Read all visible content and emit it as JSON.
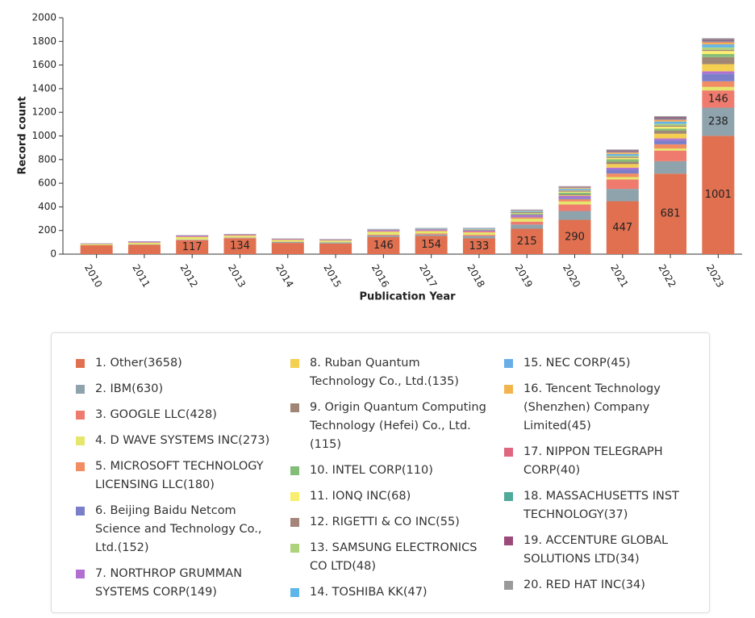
{
  "chart_data": {
    "type": "stacked_bar",
    "x_label": "Publication Year",
    "y_label": "Record count",
    "categories": [
      "2010",
      "2011",
      "2012",
      "2013",
      "2014",
      "2015",
      "2016",
      "2017",
      "2018",
      "2019",
      "2020",
      "2021",
      "2022",
      "2023"
    ],
    "ylim": [
      0,
      2000
    ],
    "yticks": [
      0,
      200,
      400,
      600,
      800,
      1000,
      1200,
      1400,
      1600,
      1800,
      2000
    ],
    "legend": "bottom",
    "series": [
      {
        "name": "1. Other(3658)",
        "color": "#e07050",
        "values": [
          75,
          80,
          117,
          134,
          95,
          90,
          146,
          154,
          133,
          215,
          290,
          447,
          681,
          1001
        ],
        "value_labels": [
          null,
          null,
          117,
          134,
          null,
          null,
          146,
          154,
          133,
          215,
          290,
          447,
          681,
          1001
        ]
      },
      {
        "name": "2. IBM(630)",
        "color": "#8fa3ad",
        "values": [
          0,
          2,
          4,
          4,
          8,
          10,
          12,
          12,
          20,
          35,
          75,
          105,
          105,
          238
        ],
        "value_labels": [
          null,
          null,
          null,
          null,
          null,
          null,
          null,
          null,
          null,
          null,
          null,
          null,
          null,
          238
        ]
      },
      {
        "name": "3. GOOGLE LLC(428)",
        "color": "#ef7b6e",
        "values": [
          0,
          0,
          3,
          3,
          2,
          0,
          6,
          8,
          10,
          25,
          55,
          80,
          90,
          146
        ],
        "value_labels": [
          null,
          null,
          null,
          null,
          null,
          null,
          null,
          null,
          null,
          null,
          null,
          null,
          null,
          146
        ]
      },
      {
        "name": "4. D WAVE SYSTEMS INC(273)",
        "color": "#e4e76b",
        "values": [
          10,
          15,
          20,
          15,
          15,
          15,
          25,
          20,
          20,
          25,
          25,
          20,
          18,
          30
        ]
      },
      {
        "name": "5. MICROSOFT TECHNOLOGY LICENSING LLC(180)",
        "color": "#f28c63",
        "values": [
          0,
          2,
          5,
          5,
          3,
          3,
          5,
          5,
          8,
          12,
          20,
          30,
          35,
          47
        ]
      },
      {
        "name": "6. Beijing Baidu Netcom Science and Technology Co., Ltd.(152)",
        "color": "#7b7fc9",
        "values": [
          0,
          0,
          0,
          0,
          0,
          0,
          0,
          0,
          0,
          5,
          12,
          35,
          35,
          65
        ]
      },
      {
        "name": "7. NORTHROP GRUMMAN SYSTEMS CORP(149)",
        "color": "#b36fd0",
        "values": [
          5,
          8,
          8,
          6,
          6,
          6,
          10,
          10,
          10,
          15,
          15,
          15,
          15,
          20
        ]
      },
      {
        "name": "8. Ruban Quantum Technology Co., Ltd.(135)",
        "color": "#f5cf4f",
        "values": [
          0,
          0,
          0,
          0,
          0,
          0,
          0,
          0,
          0,
          0,
          5,
          30,
          40,
          60
        ]
      },
      {
        "name": "9. Origin Quantum Computing Technology (Hefei) Co., Ltd.(115)",
        "color": "#a08674",
        "values": [
          0,
          0,
          0,
          0,
          0,
          0,
          0,
          0,
          0,
          2,
          8,
          20,
          25,
          60
        ]
      },
      {
        "name": "10. INTEL CORP(110)",
        "color": "#84bd78",
        "values": [
          0,
          0,
          2,
          2,
          2,
          2,
          3,
          4,
          6,
          10,
          15,
          20,
          18,
          26
        ]
      },
      {
        "name": "11. IONQ INC(68)",
        "color": "#f9ee6e",
        "values": [
          0,
          0,
          0,
          0,
          0,
          0,
          0,
          0,
          2,
          4,
          8,
          12,
          16,
          26
        ]
      },
      {
        "name": "12. RIGETTI & CO INC(55)",
        "color": "#a5857a",
        "values": [
          0,
          0,
          0,
          0,
          0,
          0,
          0,
          2,
          5,
          8,
          10,
          10,
          10,
          10
        ]
      },
      {
        "name": "13. SAMSUNG ELECTRONICS CO LTD(48)",
        "color": "#afd37c",
        "values": [
          0,
          0,
          0,
          0,
          0,
          0,
          0,
          0,
          0,
          2,
          4,
          8,
          14,
          20
        ]
      },
      {
        "name": "14. TOSHIBA KK(47)",
        "color": "#5db6ea",
        "values": [
          0,
          0,
          0,
          0,
          0,
          0,
          1,
          2,
          3,
          4,
          6,
          8,
          10,
          13
        ]
      },
      {
        "name": "15. NEC CORP(45)",
        "color": "#6aaee8",
        "values": [
          0,
          0,
          0,
          0,
          0,
          0,
          1,
          1,
          2,
          4,
          6,
          8,
          10,
          13
        ]
      },
      {
        "name": "16. Tencent Technology (Shenzhen) Company Limited(45)",
        "color": "#f2b54e",
        "values": [
          0,
          0,
          0,
          0,
          0,
          0,
          0,
          0,
          0,
          2,
          6,
          10,
          12,
          15
        ]
      },
      {
        "name": "17. NIPPON TELEGRAPH CORP(40)",
        "color": "#e0657f",
        "values": [
          1,
          1,
          1,
          1,
          1,
          1,
          2,
          2,
          2,
          3,
          4,
          6,
          7,
          8
        ]
      },
      {
        "name": "18. MASSACHUSETTS INST TECHNOLOGY(37)",
        "color": "#4faa9a",
        "values": [
          1,
          1,
          1,
          1,
          1,
          1,
          2,
          2,
          2,
          3,
          4,
          5,
          6,
          7
        ]
      },
      {
        "name": "19. ACCENTURE GLOBAL SOLUTIONS LTD(34)",
        "color": "#9b4a7a",
        "values": [
          0,
          0,
          0,
          0,
          0,
          0,
          0,
          0,
          0,
          2,
          4,
          8,
          10,
          10
        ]
      },
      {
        "name": "20. RED HAT INC(34)",
        "color": "#9a9a9a",
        "values": [
          0,
          0,
          0,
          0,
          0,
          0,
          0,
          0,
          0,
          1,
          3,
          8,
          10,
          12
        ]
      }
    ]
  }
}
